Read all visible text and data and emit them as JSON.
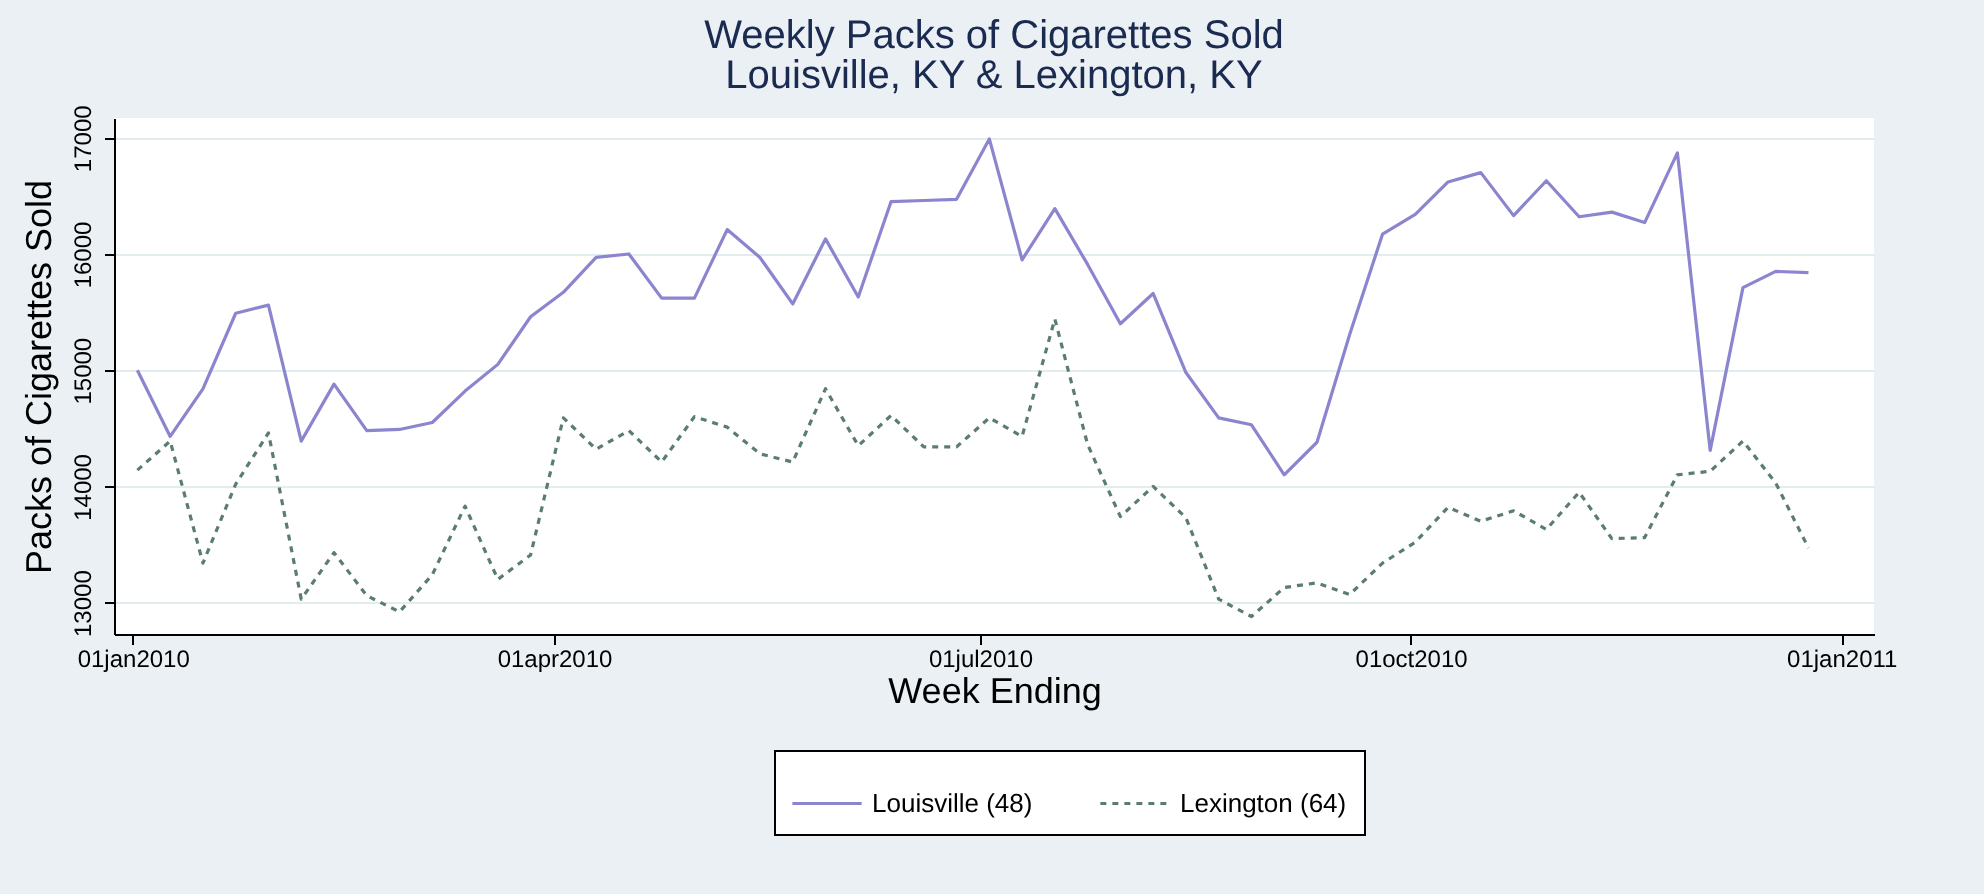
{
  "chart_data": {
    "type": "line",
    "title": "Weekly Packs of Cigarettes Sold",
    "subtitle": "Louisville, KY & Lexington, KY",
    "xlabel": "Week Ending",
    "ylabel": "Packs of Cigarettes Sold",
    "x": [
      "2010-01-02",
      "2010-01-09",
      "2010-01-16",
      "2010-01-23",
      "2010-01-30",
      "2010-02-06",
      "2010-02-13",
      "2010-02-20",
      "2010-02-27",
      "2010-03-06",
      "2010-03-13",
      "2010-03-20",
      "2010-03-27",
      "2010-04-03",
      "2010-04-10",
      "2010-04-17",
      "2010-04-24",
      "2010-05-01",
      "2010-05-08",
      "2010-05-15",
      "2010-05-22",
      "2010-05-29",
      "2010-06-05",
      "2010-06-12",
      "2010-06-19",
      "2010-06-26",
      "2010-07-03",
      "2010-07-10",
      "2010-07-17",
      "2010-07-24",
      "2010-07-31",
      "2010-08-07",
      "2010-08-14",
      "2010-08-21",
      "2010-08-28",
      "2010-09-04",
      "2010-09-11",
      "2010-09-18",
      "2010-09-25",
      "2010-10-02",
      "2010-10-09",
      "2010-10-16",
      "2010-10-23",
      "2010-10-30",
      "2010-11-06",
      "2010-11-13",
      "2010-11-20",
      "2010-11-27",
      "2010-12-04",
      "2010-12-11",
      "2010-12-18",
      "2010-12-25"
    ],
    "series": [
      {
        "name": "Louisville (48)",
        "color": "#8b85cf",
        "line_style": "solid",
        "values": [
          15000,
          14430,
          14840,
          15490,
          15560,
          14390,
          14880,
          14480,
          14490,
          14550,
          14820,
          15050,
          15460,
          15670,
          15970,
          16000,
          15620,
          15620,
          16210,
          15970,
          15570,
          16130,
          15630,
          16450,
          16460,
          16470,
          16990,
          15950,
          16390,
          15910,
          15400,
          15660,
          14980,
          14590,
          14530,
          14100,
          14380,
          15310,
          16170,
          16340,
          16620,
          16700,
          16330,
          16630,
          16320,
          16360,
          16270,
          16870,
          14310,
          15710,
          15850,
          15840
        ]
      },
      {
        "name": "Lexington (64)",
        "color": "#5b7d6f",
        "line_style": "dashed",
        "values": [
          14140,
          14390,
          13340,
          14020,
          14460,
          13030,
          13430,
          13060,
          12920,
          13240,
          13830,
          13200,
          13410,
          14590,
          14320,
          14480,
          14210,
          14600,
          14510,
          14280,
          14210,
          14840,
          14350,
          14610,
          14340,
          14340,
          14590,
          14430,
          15440,
          14360,
          13740,
          14000,
          13730,
          13030,
          12880,
          13130,
          13170,
          13070,
          13340,
          13520,
          13820,
          13700,
          13790,
          13630,
          13950,
          13550,
          13560,
          14100,
          14130,
          14390,
          14030,
          13470
        ]
      }
    ],
    "xlim": [
      "2009-12-28",
      "2011-01-08"
    ],
    "xticks": [
      {
        "value": "2010-01-01",
        "label": "01jan2010"
      },
      {
        "value": "2010-04-01",
        "label": "01apr2010"
      },
      {
        "value": "2010-07-01",
        "label": "01jul2010"
      },
      {
        "value": "2010-10-01",
        "label": "01oct2010"
      },
      {
        "value": "2011-01-01",
        "label": "01jan2011"
      }
    ],
    "ylim": [
      12730,
      17170
    ],
    "yticks": [
      13000,
      14000,
      15000,
      16000,
      17000
    ],
    "grid": "y",
    "legend": "bottom",
    "marker": "none"
  }
}
